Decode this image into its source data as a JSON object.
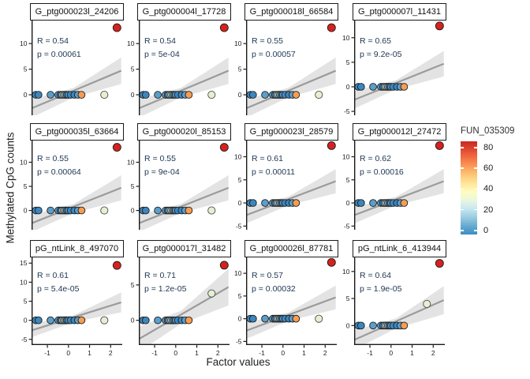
{
  "figure": {
    "x_axis_label": "Factor values",
    "y_axis_label": "Methylated CpG counts"
  },
  "legend": {
    "title": "FUN_035309",
    "ticks": [
      80,
      60,
      40,
      20,
      0
    ],
    "value_range": [
      -4,
      86
    ],
    "gradient_stops_top_to_bottom": [
      "#c92823",
      "#e04a31",
      "#f47044",
      "#fb9d59",
      "#fdc877",
      "#fee79c",
      "#fdfdc0",
      "#e9f6e0",
      "#c6e6f0",
      "#99cbe0",
      "#66a9d2",
      "#3d8ec4"
    ]
  },
  "chart_data": {
    "type": "scatter",
    "layout": "facet-grid-3x4",
    "xlabel": "Factor values",
    "ylabel": "Methylated CpG counts",
    "xlim": [
      -1.75,
      2.55
    ],
    "x_ticks_bottom_row": [
      -1,
      0,
      1,
      2
    ],
    "grid": false,
    "legend_position": "right-middle",
    "palette": {
      "blue": "#3d86bd",
      "mid_blue": "#5b9ecb",
      "light_blue": "#a8cfe2",
      "cream": "#f1efc4",
      "pale_green": "#e5f0d2",
      "orange": "#f59d52",
      "red": "#d7211e"
    },
    "band_color": "#d4d4d4",
    "line_color": "#9b9b9b",
    "stats_color": "#1e3652",
    "base_points_y0": [
      {
        "x": -1.55,
        "c": "blue"
      },
      {
        "x": -1.42,
        "c": "blue"
      },
      {
        "x": -0.85,
        "c": "mid_blue"
      },
      {
        "x": -0.48,
        "c": "mid_blue"
      },
      {
        "x": -0.38,
        "c": "blue"
      },
      {
        "x": -0.3,
        "c": "light_blue"
      },
      {
        "x": -0.22,
        "c": "cream"
      },
      {
        "x": -0.15,
        "c": "light_blue"
      },
      {
        "x": -0.08,
        "c": "blue"
      },
      {
        "x": 0.0,
        "c": "mid_blue"
      },
      {
        "x": 0.1,
        "c": "blue"
      },
      {
        "x": 0.28,
        "c": "blue"
      },
      {
        "x": 0.45,
        "c": "mid_blue"
      },
      {
        "x": 0.62,
        "c": "orange"
      }
    ],
    "regression": {
      "line": [
        [
          -1.72,
          -2.6
        ],
        [
          2.5,
          4.7
        ]
      ],
      "band": [
        [
          -1.72,
          -4.4
        ],
        [
          0.25,
          -0.5
        ],
        [
          2.5,
          2.1
        ],
        [
          2.5,
          7.3
        ],
        [
          0.25,
          1.35
        ],
        [
          -1.72,
          -0.85
        ]
      ]
    },
    "panels": [
      {
        "title": "G_ptg000023l_24206",
        "r": "R = 0.54",
        "p": "p = 0.00061",
        "y_ticks": [
          10,
          5,
          0
        ],
        "ylim": [
          -4.0,
          14.5
        ],
        "red": {
          "x": 2.3,
          "y": 13.1
        },
        "green": {
          "x": 1.7,
          "y": 0
        }
      },
      {
        "title": "G_ptg000004l_17728",
        "r": "R = 0.54",
        "p": "p = 5e-04",
        "y_ticks": [
          10,
          5,
          0
        ],
        "ylim": [
          -4.0,
          14.5
        ],
        "red": {
          "x": 2.3,
          "y": 13.1
        },
        "green": {
          "x": 1.7,
          "y": 0
        }
      },
      {
        "title": "G_ptg000018l_66584",
        "r": "R = 0.55",
        "p": "p = 0.00057",
        "y_ticks": [
          10,
          5,
          0
        ],
        "ylim": [
          -4.0,
          14.5
        ],
        "red": {
          "x": 2.3,
          "y": 13.1
        },
        "green": {
          "x": 1.7,
          "y": 0
        }
      },
      {
        "title": "G_ptg000007l_11431",
        "r": "R = 0.65",
        "p": "p = 9.2e-05",
        "y_ticks": [
          10,
          5,
          0,
          -5
        ],
        "ylim": [
          -5.8,
          13.5
        ],
        "red": {
          "x": 2.3,
          "y": 12.4
        },
        "green": null
      },
      {
        "title": "G_ptg000035l_63664",
        "r": "R = 0.55",
        "p": "p = 0.00064",
        "y_ticks": [
          10,
          5,
          0
        ],
        "ylim": [
          -4.0,
          14.5
        ],
        "red": {
          "x": 2.3,
          "y": 13.1
        },
        "green": {
          "x": 1.7,
          "y": 0
        }
      },
      {
        "title": "G_ptg000020l_85153",
        "r": "R = 0.55",
        "p": "p = 9e-04",
        "y_ticks": [
          10,
          5,
          0
        ],
        "ylim": [
          -4.0,
          14.5
        ],
        "red": {
          "x": 2.3,
          "y": 13.1
        },
        "green": {
          "x": 1.7,
          "y": 0
        }
      },
      {
        "title": "G_ptg000023l_28579",
        "r": "R = 0.61",
        "p": "p = 0.00011",
        "y_ticks": [
          10,
          5,
          0,
          -5
        ],
        "ylim": [
          -5.8,
          13.5
        ],
        "red": {
          "x": 2.3,
          "y": 12.4
        },
        "green": null
      },
      {
        "title": "G_ptg000012l_27472",
        "r": "R = 0.62",
        "p": "p = 0.00016",
        "y_ticks": [
          10,
          5,
          0,
          -5
        ],
        "ylim": [
          -5.8,
          13.5
        ],
        "red": {
          "x": 2.3,
          "y": 12.4
        },
        "green": null
      },
      {
        "title": "pG_ntLink_8_497070",
        "r": "R = 0.61",
        "p": "p = 5.4e-05",
        "y_ticks": [
          15,
          10,
          5,
          0,
          -5
        ],
        "ylim": [
          -6.5,
          16.5
        ],
        "red": {
          "x": 2.3,
          "y": 14.4
        },
        "green": {
          "x": 1.7,
          "y": 0
        }
      },
      {
        "title": "G_ptg000017l_31482",
        "r": "R = 0.71",
        "p": "p = 1.2e-05",
        "y_ticks": [
          5,
          0
        ],
        "ylim": [
          -3.5,
          8.9
        ],
        "red": {
          "x": 2.3,
          "y": 7.8
        },
        "green": {
          "x": 1.7,
          "y": 3.8
        }
      },
      {
        "title": "G_ptg000026l_87781",
        "r": "R = 0.57",
        "p": "p = 0.00032",
        "y_ticks": [
          10,
          5,
          0,
          -5
        ],
        "ylim": [
          -5.8,
          13.5
        ],
        "red": {
          "x": 2.3,
          "y": 12.4
        },
        "green": {
          "x": 1.7,
          "y": 0
        }
      },
      {
        "title": "pG_ntLink_6_413944",
        "r": "R = 0.64",
        "p": "p = 1.9e-05",
        "y_ticks": [
          10,
          5,
          0
        ],
        "ylim": [
          -3.6,
          12.6
        ],
        "red": {
          "x": 2.3,
          "y": 11.5
        },
        "green": {
          "x": 1.7,
          "y": 4.0
        }
      }
    ]
  }
}
